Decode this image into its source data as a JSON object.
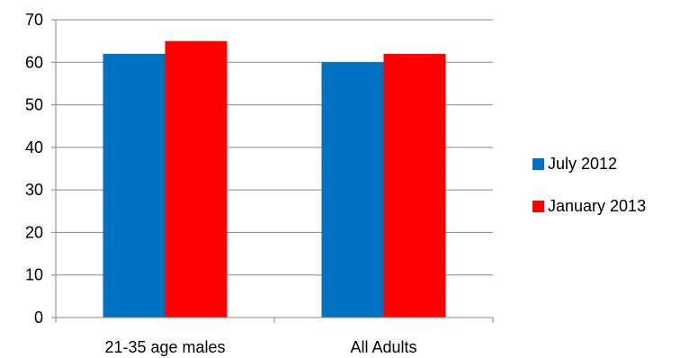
{
  "chart_data": {
    "type": "bar",
    "categories": [
      "21-35 age males",
      "All Adults"
    ],
    "series": [
      {
        "name": "July 2012",
        "values": [
          62,
          60
        ],
        "color": "#0070C0"
      },
      {
        "name": "January 2013",
        "values": [
          65,
          62
        ],
        "color": "#FF0000"
      }
    ],
    "ylim": [
      0,
      70
    ],
    "yticks": [
      0,
      10,
      20,
      30,
      40,
      50,
      60,
      70
    ],
    "grid": true,
    "legend_position": "right"
  }
}
